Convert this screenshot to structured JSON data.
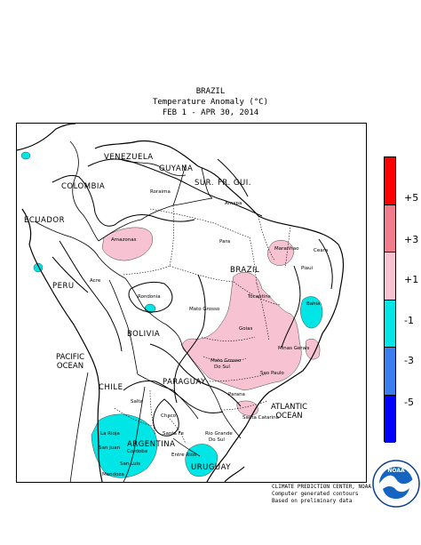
{
  "header": {
    "line1": "BRAZIL",
    "line2": "Temperature Anomaly (°C)",
    "line3": "FEB  1 - APR 30, 2014"
  },
  "countries": {
    "venezuela": "VENEZUELA",
    "guyana": "GUYANA",
    "sur": "SUR.",
    "fr_gui": "FR. GUI.",
    "colombia": "COLOMBIA",
    "ecuador": "ECUADOR",
    "brazil": "BRAZIL",
    "peru": "PERU",
    "bolivia": "BOLIVIA",
    "paraguay": "PARAGUAY",
    "chile": "CHILE",
    "argentina": "ARGENTINA",
    "uruguay": "URUGUAY"
  },
  "oceans": {
    "pacific_line1": "PACIFIC",
    "pacific_line2": "OCEAN",
    "atlantic_line1": "ATLANTIC",
    "atlantic_line2": "OCEAN"
  },
  "states": [
    {
      "key": "roraima",
      "label": "Roraima"
    },
    {
      "key": "amapa",
      "label": "Amapa"
    },
    {
      "key": "amazonas",
      "label": "Amazonas"
    },
    {
      "key": "para",
      "label": "Para"
    },
    {
      "key": "maranhao",
      "label": "Maranhao"
    },
    {
      "key": "ceara",
      "label": "Ceara"
    },
    {
      "key": "piaui",
      "label": "Piaui"
    },
    {
      "key": "acre",
      "label": "Acre"
    },
    {
      "key": "rondonia",
      "label": "Rondonia"
    },
    {
      "key": "tocantins",
      "label": "Tocantins"
    },
    {
      "key": "bahia",
      "label": "Bahia"
    },
    {
      "key": "mato_grosso",
      "label": "Mato Grosso"
    },
    {
      "key": "goias",
      "label": "Goias"
    },
    {
      "key": "minas_gerais",
      "label": "Minas Gerais"
    },
    {
      "key": "mato_grosso_do",
      "label": "Mato Grosso"
    },
    {
      "key": "do_sul",
      "label": "Do Sul"
    },
    {
      "key": "sao_paulo",
      "label": "Sao Paulo"
    },
    {
      "key": "parana",
      "label": "Parana"
    },
    {
      "key": "santa_catarina",
      "label": "Santa Catarina"
    },
    {
      "key": "rio_grande",
      "label": "Rio Grande"
    },
    {
      "key": "do_sul_rs",
      "label": "Do Sul"
    },
    {
      "key": "salta",
      "label": "Salta"
    },
    {
      "key": "chaco",
      "label": "Chaco"
    },
    {
      "key": "santa_fe",
      "label": "Santa Fe"
    },
    {
      "key": "la_rioja",
      "label": "La Rioja"
    },
    {
      "key": "cordoba",
      "label": "Cordoba"
    },
    {
      "key": "san_juan",
      "label": "San Juan"
    },
    {
      "key": "san_luis",
      "label": "San Luis"
    },
    {
      "key": "entre_rios",
      "label": "Entre Rios"
    },
    {
      "key": "mendoza",
      "label": "Mendoza"
    }
  ],
  "legend": {
    "colors": [
      "#ff0000",
      "#f07c8e",
      "#f7c3d3",
      "#ffffff",
      "#00e5e5",
      "#3a7ef0",
      "#0000ff"
    ],
    "ticks": [
      "+5",
      "+3",
      "+1",
      "-1",
      "-3",
      "-5"
    ]
  },
  "credits": {
    "line1": "CLIMATE PREDICTION CENTER, NOAA",
    "line2": "Computer generated contours",
    "line3": "Based on preliminary data"
  },
  "logo": {
    "text": "NOAA"
  }
}
